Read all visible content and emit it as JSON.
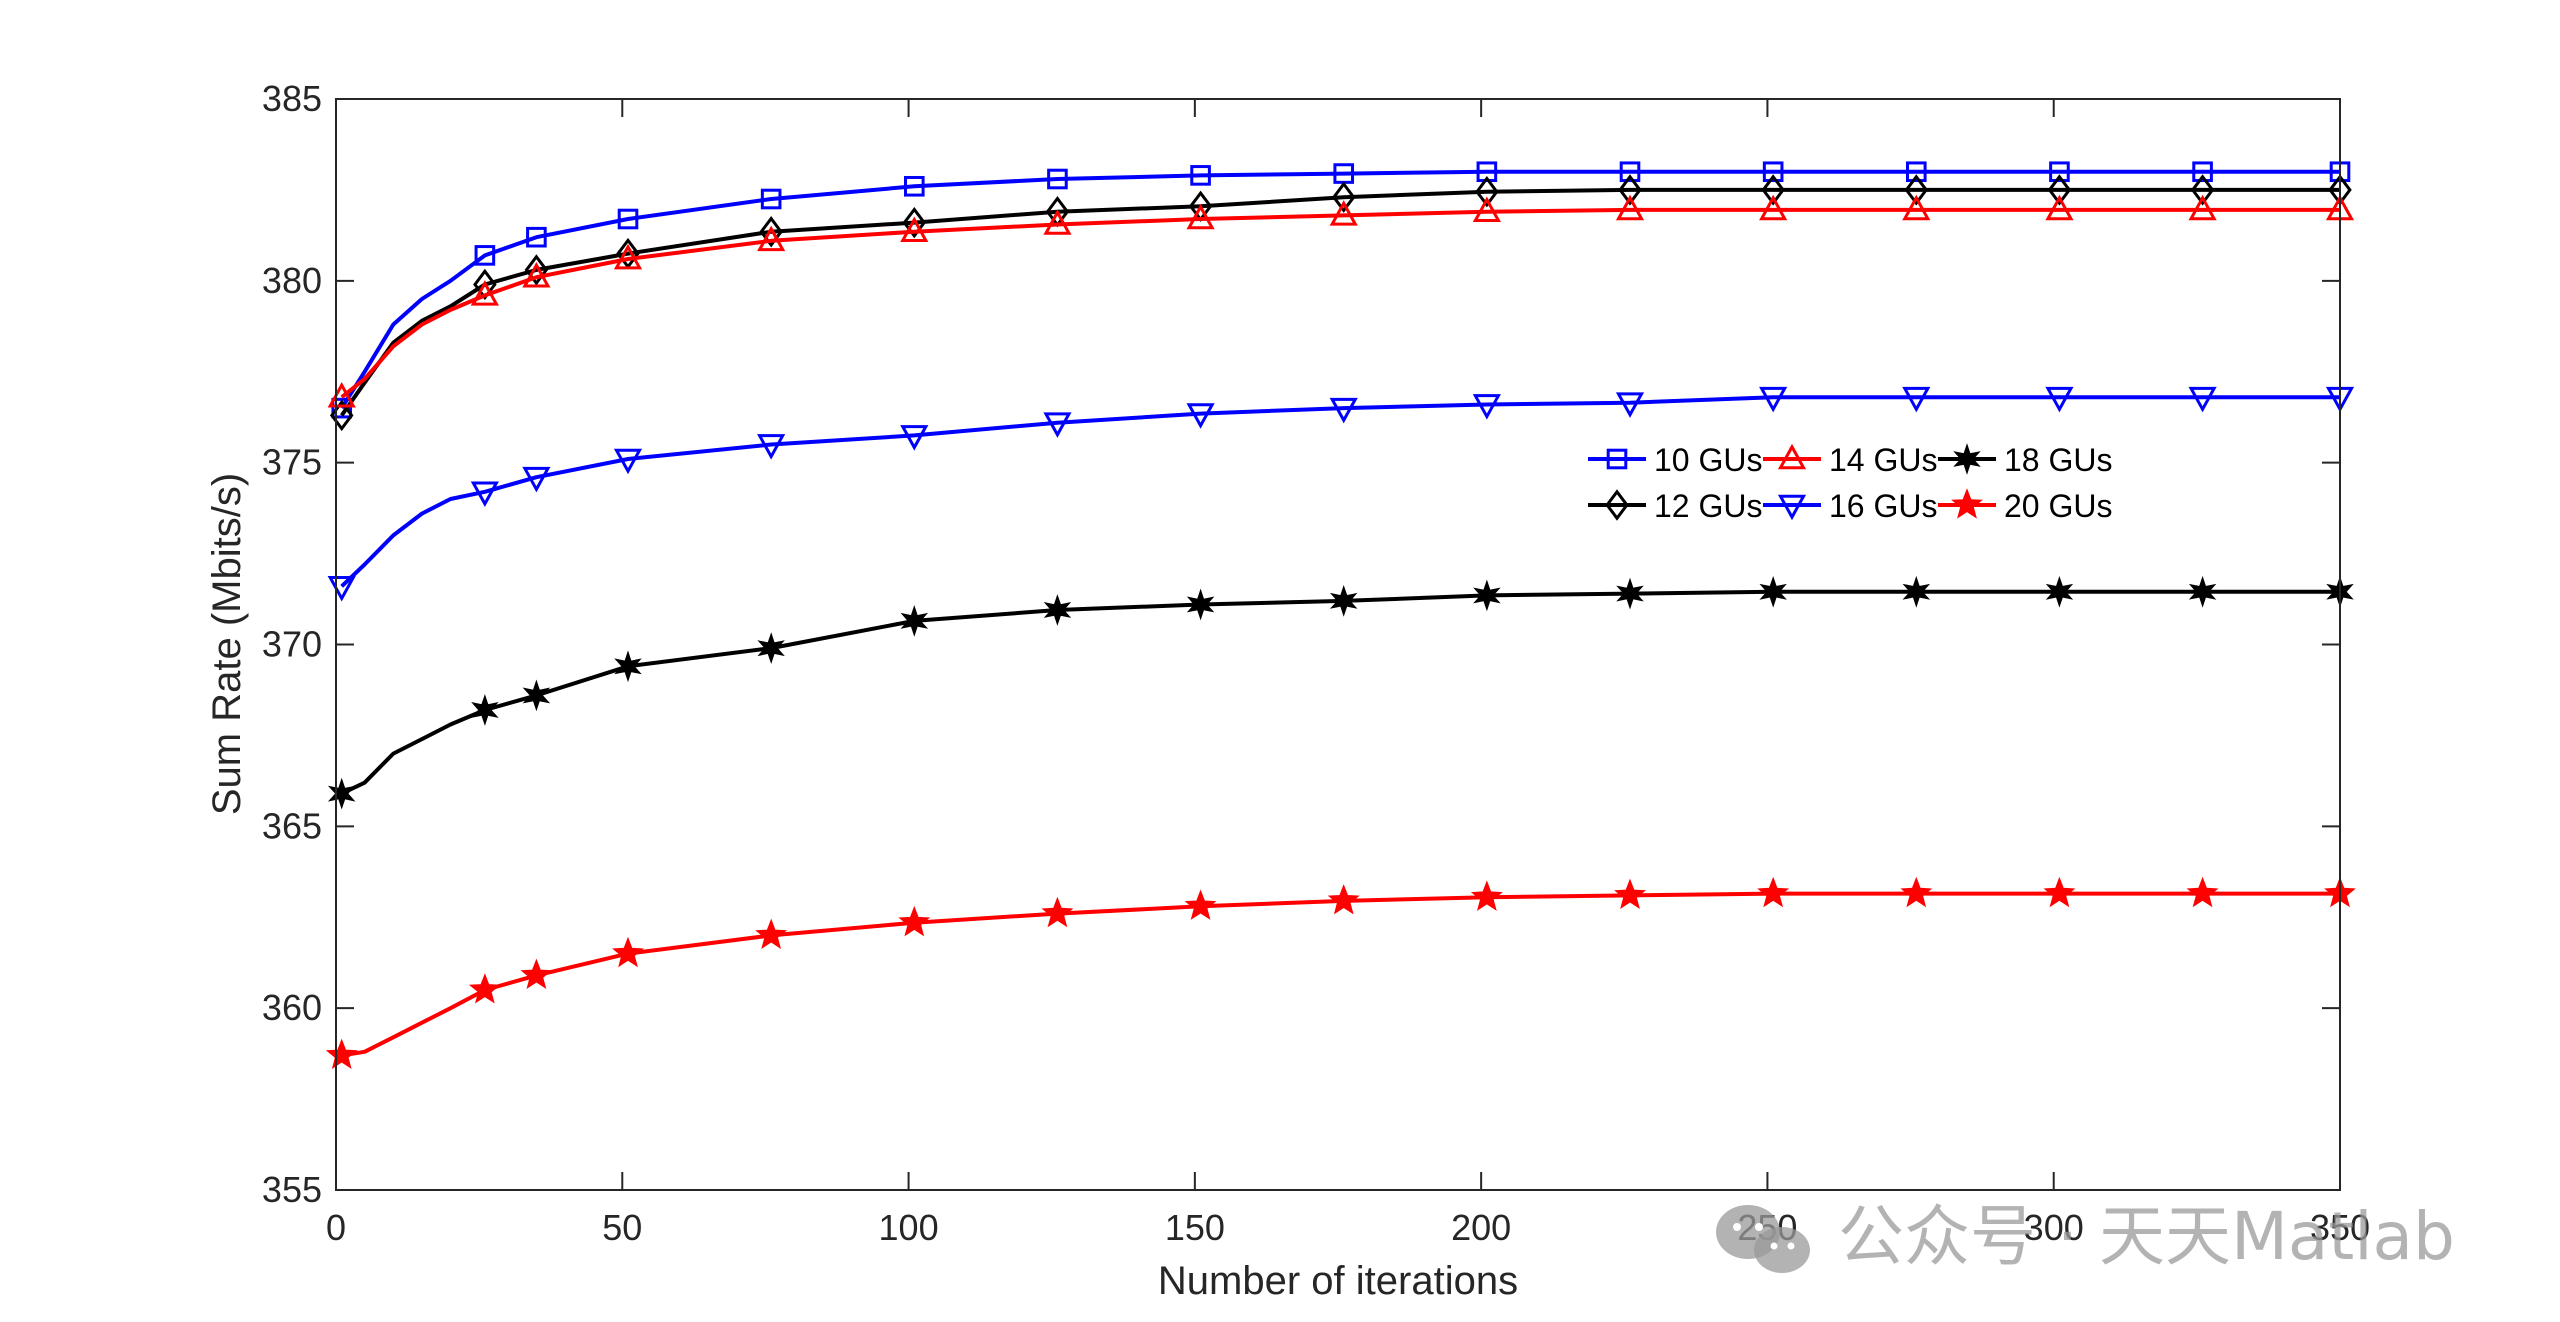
{
  "chart_data": {
    "type": "line",
    "xlabel": "Number of iterations",
    "ylabel": "Sum Rate (Mbits/s)",
    "xlim": [
      0,
      350
    ],
    "ylim": [
      355,
      385
    ],
    "xticks": [
      0,
      50,
      100,
      150,
      200,
      250,
      300,
      350
    ],
    "yticks": [
      355,
      360,
      365,
      370,
      375,
      380,
      385
    ],
    "grid": false,
    "legend_placement": "center-right, two rows of three",
    "x": [
      1,
      5,
      10,
      15,
      20,
      26,
      35,
      51,
      76,
      101,
      126,
      151,
      176,
      201,
      226,
      251,
      276,
      301,
      326,
      350
    ],
    "series": [
      {
        "name": "10 GUs",
        "color": "#0000ff",
        "marker": "square",
        "values": [
          376.5,
          377.5,
          378.8,
          379.5,
          380.0,
          380.7,
          381.2,
          381.7,
          382.25,
          382.6,
          382.8,
          382.9,
          382.95,
          383.0,
          383.0,
          383.0,
          383.0,
          383.0,
          383.0,
          383.0
        ]
      },
      {
        "name": "12 GUs",
        "color": "#000000",
        "marker": "diamond",
        "values": [
          376.3,
          377.2,
          378.3,
          378.9,
          379.3,
          379.9,
          380.3,
          380.75,
          381.35,
          381.6,
          381.9,
          382.05,
          382.3,
          382.45,
          382.5,
          382.5,
          382.5,
          382.5,
          382.5,
          382.5
        ]
      },
      {
        "name": "14 GUs",
        "color": "#ff0000",
        "marker": "triangle-up",
        "values": [
          376.8,
          377.3,
          378.2,
          378.8,
          379.2,
          379.6,
          380.1,
          380.6,
          381.1,
          381.35,
          381.55,
          381.7,
          381.8,
          381.9,
          381.95,
          381.95,
          381.95,
          381.95,
          381.95,
          381.95
        ]
      },
      {
        "name": "16 GUs",
        "color": "#0000ff",
        "marker": "triangle-down",
        "values": [
          371.6,
          372.2,
          373.0,
          373.6,
          374.0,
          374.2,
          374.6,
          375.1,
          375.5,
          375.75,
          376.1,
          376.35,
          376.5,
          376.6,
          376.65,
          376.8,
          376.8,
          376.8,
          376.8,
          376.8
        ]
      },
      {
        "name": "18 GUs",
        "color": "#000000",
        "marker": "star6",
        "values": [
          365.9,
          366.2,
          367.0,
          367.4,
          367.8,
          368.2,
          368.6,
          369.4,
          369.9,
          370.65,
          370.95,
          371.1,
          371.2,
          371.35,
          371.4,
          371.45,
          371.45,
          371.45,
          371.45,
          371.45
        ]
      },
      {
        "name": "20 GUs",
        "color": "#ff0000",
        "marker": "star5",
        "values": [
          358.7,
          358.8,
          359.2,
          359.6,
          360.0,
          360.5,
          360.9,
          361.5,
          362.0,
          362.35,
          362.6,
          362.8,
          362.95,
          363.05,
          363.1,
          363.15,
          363.15,
          363.15,
          363.15,
          363.15
        ]
      }
    ]
  },
  "watermark": {
    "icon": "wechat-icon",
    "text": "公众号 · 天天Matlab"
  }
}
